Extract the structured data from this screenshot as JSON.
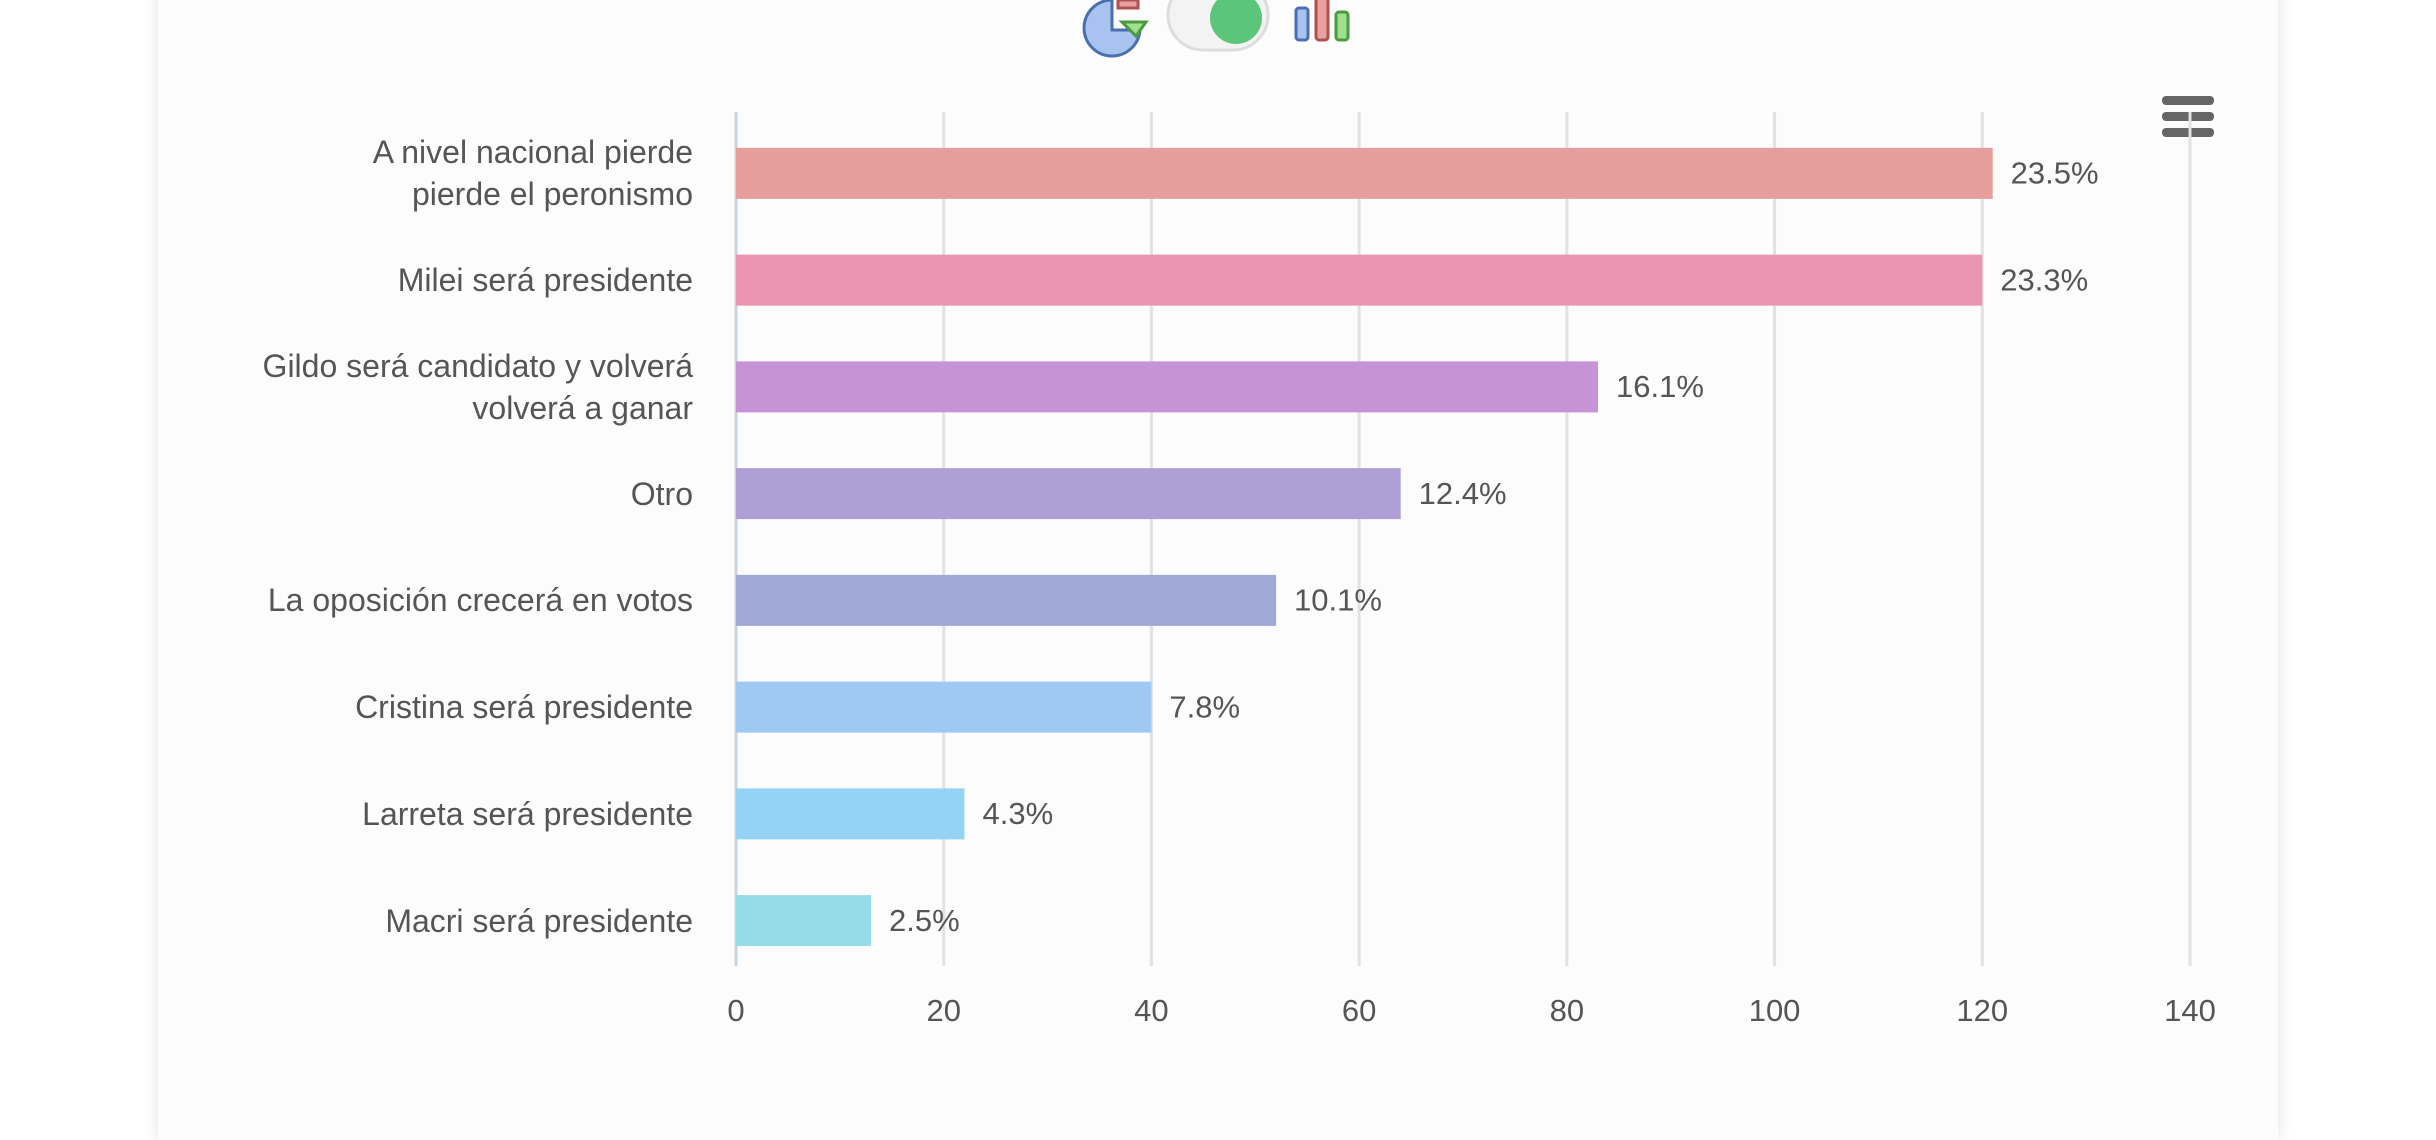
{
  "chart_data": {
    "type": "bar",
    "orientation": "horizontal",
    "categories": [
      "A nivel nacional pierde\npierde el peronismo",
      "Milei será presidente",
      "Gildo será candidato y volverá\nvolverá a ganar",
      "Otro",
      "La oposición crecerá en votos",
      "Cristina será presidente",
      "Larreta será presidente",
      "Macri será presidente"
    ],
    "values": [
      121,
      120,
      83,
      64,
      52,
      40,
      22,
      13
    ],
    "value_labels": [
      "23.5%",
      "23.3%",
      "16.1%",
      "12.4%",
      "10.1%",
      "7.8%",
      "4.3%",
      "2.5%"
    ],
    "colors": [
      "#e59e9c",
      "#e994b0",
      "#c593d6",
      "#b09fd6",
      "#a0a8d8",
      "#9fc9f3",
      "#94d3f3",
      "#98dbe8"
    ],
    "xlim": [
      0,
      140
    ],
    "xticks": [
      0,
      20,
      40,
      60,
      80,
      100,
      120,
      140
    ],
    "grid": true
  }
}
